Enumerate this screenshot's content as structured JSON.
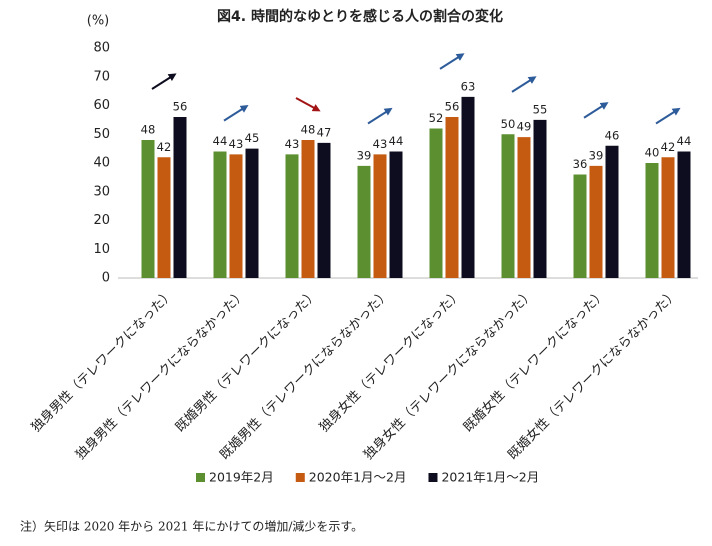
{
  "chart_data": {
    "type": "bar",
    "title": "図4. 時間的なゆとりを感じる人の割合の変化",
    "y_unit": "(%)",
    "categories": [
      "独身男性（テレワークになった）",
      "独身男性（テレワークにならなかった）",
      "既婚男性（テレワークになった）",
      "既婚男性（テレワークにならなかった）",
      "独身女性（テレワークになった）",
      "独身女性（テレワークにならなかった）",
      "既婚女性（テレワークになった）",
      "既婚女性（テレワークにならなかった）"
    ],
    "series": [
      {
        "name": "2019年2月",
        "color": "#5b8f2f",
        "values": [
          48,
          44,
          43,
          39,
          52,
          50,
          36,
          40
        ]
      },
      {
        "name": "2020年1月～2月",
        "color": "#c55a11",
        "values": [
          42,
          43,
          48,
          43,
          56,
          49,
          39,
          42
        ]
      },
      {
        "name": "2021年1月～2月",
        "color": "#0d0d1f",
        "values": [
          56,
          45,
          47,
          44,
          63,
          55,
          46,
          44
        ]
      }
    ],
    "arrow_colors": [
      "#0d0d1f",
      "#2e5c9a",
      "#a31515",
      "#2e5c9a",
      "#2e5c9a",
      "#2e5c9a",
      "#2e5c9a",
      "#2e5c9a"
    ],
    "ylim": [
      0,
      80
    ],
    "yticks": [
      0,
      10,
      20,
      30,
      40,
      50,
      60,
      70,
      80
    ],
    "grid": false,
    "legend": "bottom",
    "note": "注）矢印は 2020 年から 2021 年にかけての増加/減少を示す。"
  }
}
